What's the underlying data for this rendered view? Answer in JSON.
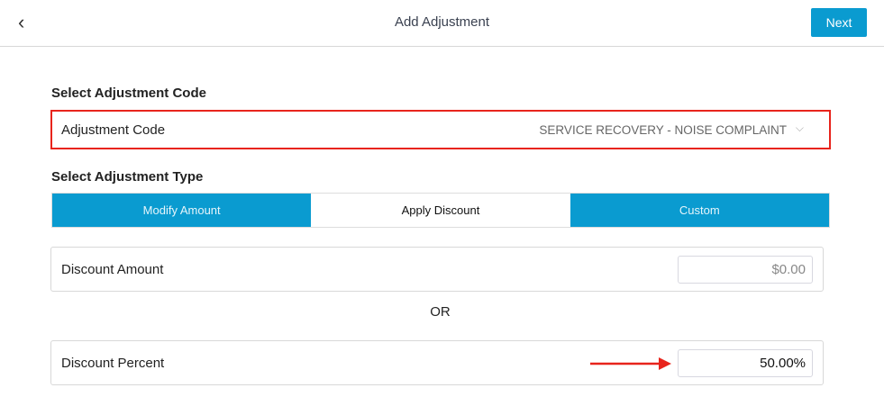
{
  "header": {
    "title": "Add Adjustment",
    "next_label": "Next",
    "back_icon": "chevron-left-icon"
  },
  "code_section": {
    "heading": "Select Adjustment Code",
    "label": "Adjustment Code",
    "value": "SERVICE RECOVERY - NOISE COMPLAINT",
    "highlight_color": "#e8241c"
  },
  "type_section": {
    "heading": "Select Adjustment Type",
    "options": [
      {
        "label": "Modify Amount"
      },
      {
        "label": "Apply Discount",
        "selected": true
      },
      {
        "label": "Custom"
      }
    ]
  },
  "discount_amount": {
    "label": "Discount Amount",
    "placeholder": "$0.00"
  },
  "or_label": "OR",
  "discount_percent": {
    "label": "Discount Percent",
    "value": "50.00%"
  },
  "accent_color": "#0a9bd0"
}
